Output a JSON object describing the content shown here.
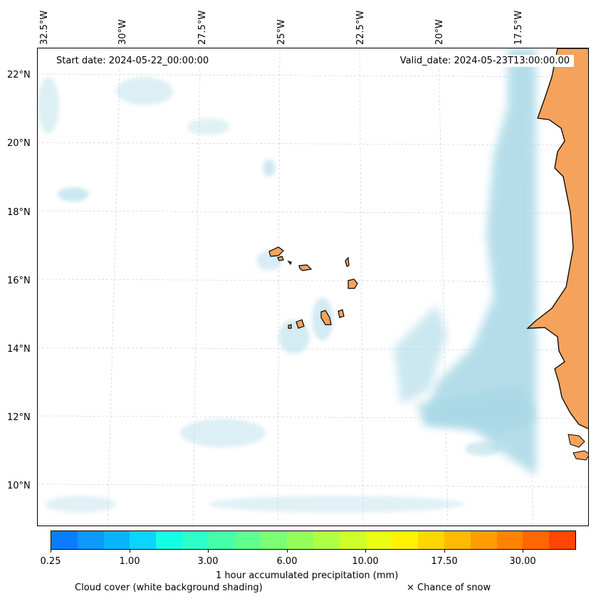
{
  "map": {
    "start_date": "Start date: 2024-05-22_00:00:00",
    "valid_date": "Valid_date: 2024-05-23T13:00:00.00",
    "lon_labels": [
      "32.5°W",
      "30°W",
      "27.5°W",
      "25°W",
      "22.5°W",
      "20°W",
      "17.5°W"
    ],
    "lat_labels": [
      "22°N",
      "20°N",
      "18°N",
      "16°N",
      "14°N",
      "12°N",
      "10°N"
    ],
    "land_color": "#f5a35c",
    "cloud_color": "#a9d8e6"
  },
  "colorbar": {
    "colors": [
      "#0a7cff",
      "#0a99ff",
      "#0ab3ff",
      "#0ad4ff",
      "#12ffe6",
      "#2effc8",
      "#45ffaa",
      "#5fff8f",
      "#7aff74",
      "#95ff5a",
      "#b0ff45",
      "#cfff2a",
      "#e8ff14",
      "#fff200",
      "#ffd600",
      "#ffba00",
      "#ff9e00",
      "#ff8300",
      "#ff6600",
      "#ff4500"
    ],
    "ticks": [
      "0.25",
      "1.00",
      "3.00",
      "6.00",
      "10.00",
      "17.50",
      "30.00"
    ],
    "label": "1 hour accumulated precipitation (mm)"
  },
  "legend": {
    "cloud_cover": "Cloud cover (white background shading)",
    "snow": "× Chance of snow"
  }
}
